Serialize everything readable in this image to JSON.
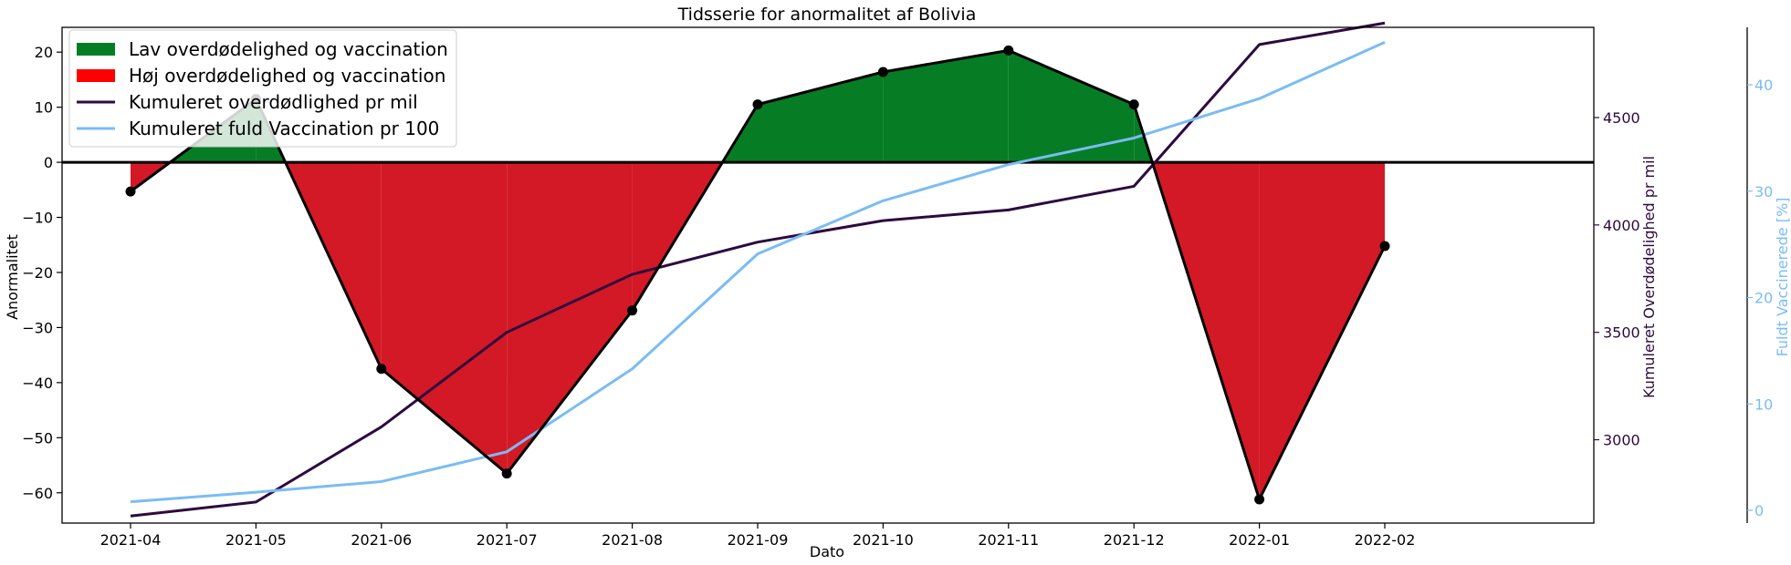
{
  "chart_data": {
    "type": "line",
    "title": "Tidsserie for anormalitet af Bolivia",
    "xlabel": "Dato",
    "ylabel_left": "Anormalitet",
    "ylabel_right1": "Kumuleret Overdødelighed pr mil",
    "ylabel_right2": "Fuldt Vaccinerede [%]",
    "x_tick_labels": [
      "2021-04",
      "2021-05",
      "2021-06",
      "2021-07",
      "2021-08",
      "2021-09",
      "2021-10",
      "2021-11",
      "2021-12",
      "2022-01",
      "2022-02"
    ],
    "y_left_ticks": [
      20,
      10,
      0,
      -10,
      -20,
      -30,
      -40,
      -50,
      -60
    ],
    "y_left_range": [
      -65.5,
      24.5
    ],
    "y_right1_ticks": [
      4500,
      4000,
      3500,
      3000
    ],
    "y_right1_range": [
      2612,
      4920
    ],
    "y_right2_ticks": [
      40,
      30,
      20,
      10,
      0
    ],
    "y_right2_range": [
      -1.2,
      45.4
    ],
    "anomaly": [
      -5.3,
      11.5,
      -37.5,
      -56.5,
      -26.9,
      10.5,
      16.4,
      20.3,
      10.5,
      -61.2,
      -15.2
    ],
    "cumulative_excess_mortality": [
      2645,
      2710,
      3060,
      3500,
      3770,
      3920,
      4020,
      4070,
      4180,
      4840,
      4940
    ],
    "cumulative_full_vaccination": [
      0.8,
      1.7,
      2.7,
      5.5,
      13.3,
      24.1,
      29.1,
      32.5,
      35.0,
      38.7,
      44.0
    ],
    "legend": [
      {
        "label": "Lav overdødelighed og vaccination",
        "color": "#067d25",
        "kind": "patch"
      },
      {
        "label": "Høj overdødelighed og vaccination",
        "color": "#ff0000",
        "kind": "patch"
      },
      {
        "label": "Kumuleret overdødlighed pr mil",
        "color": "#2d0a3f",
        "kind": "line"
      },
      {
        "label": "Kumuleret fuld Vaccination pr 100",
        "color": "#7abcf4",
        "kind": "line"
      }
    ],
    "legend_position": "top-left",
    "colors": {
      "positive_fill": "#067d25",
      "negative_fill": "#d31925",
      "anomaly_line": "#000000",
      "mortality_line": "#2d0a3f",
      "vaccination_line": "#7abcf4",
      "right2_axis": "#7abcf4"
    }
  }
}
